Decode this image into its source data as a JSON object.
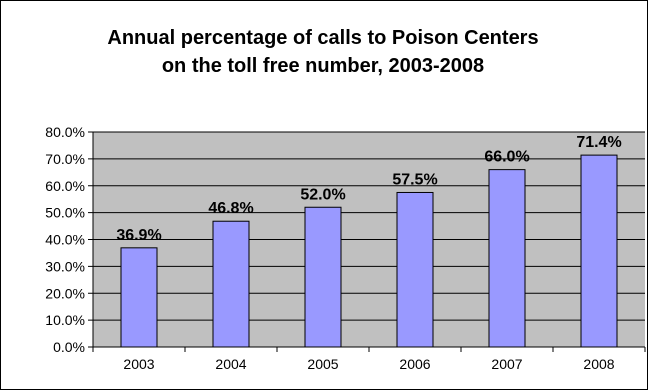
{
  "chart_data": {
    "type": "bar",
    "title": "Annual percentage of calls to Poison Centers",
    "subtitle": "on the toll free number, 2003-2008",
    "categories": [
      "2003",
      "2004",
      "2005",
      "2006",
      "2007",
      "2008"
    ],
    "values": [
      36.9,
      46.8,
      52.0,
      57.5,
      66.0,
      71.4
    ],
    "data_labels": [
      "36.9%",
      "46.8%",
      "52.0%",
      "57.5%",
      "66.0%",
      "71.4%"
    ],
    "ylim": [
      0,
      80
    ],
    "yticks": [
      0,
      10,
      20,
      30,
      40,
      50,
      60,
      70,
      80
    ],
    "ytick_labels": [
      "0.0%",
      "10.0%",
      "20.0%",
      "30.0%",
      "40.0%",
      "50.0%",
      "60.0%",
      "70.0%",
      "80.0%"
    ],
    "xlabel": "",
    "ylabel": "",
    "grid": true,
    "legend": "none",
    "colors": {
      "bar_fill": "#9999ff",
      "bar_stroke": "#000000",
      "plot_background": "#c0c0c0",
      "gridline": "#000000"
    }
  }
}
